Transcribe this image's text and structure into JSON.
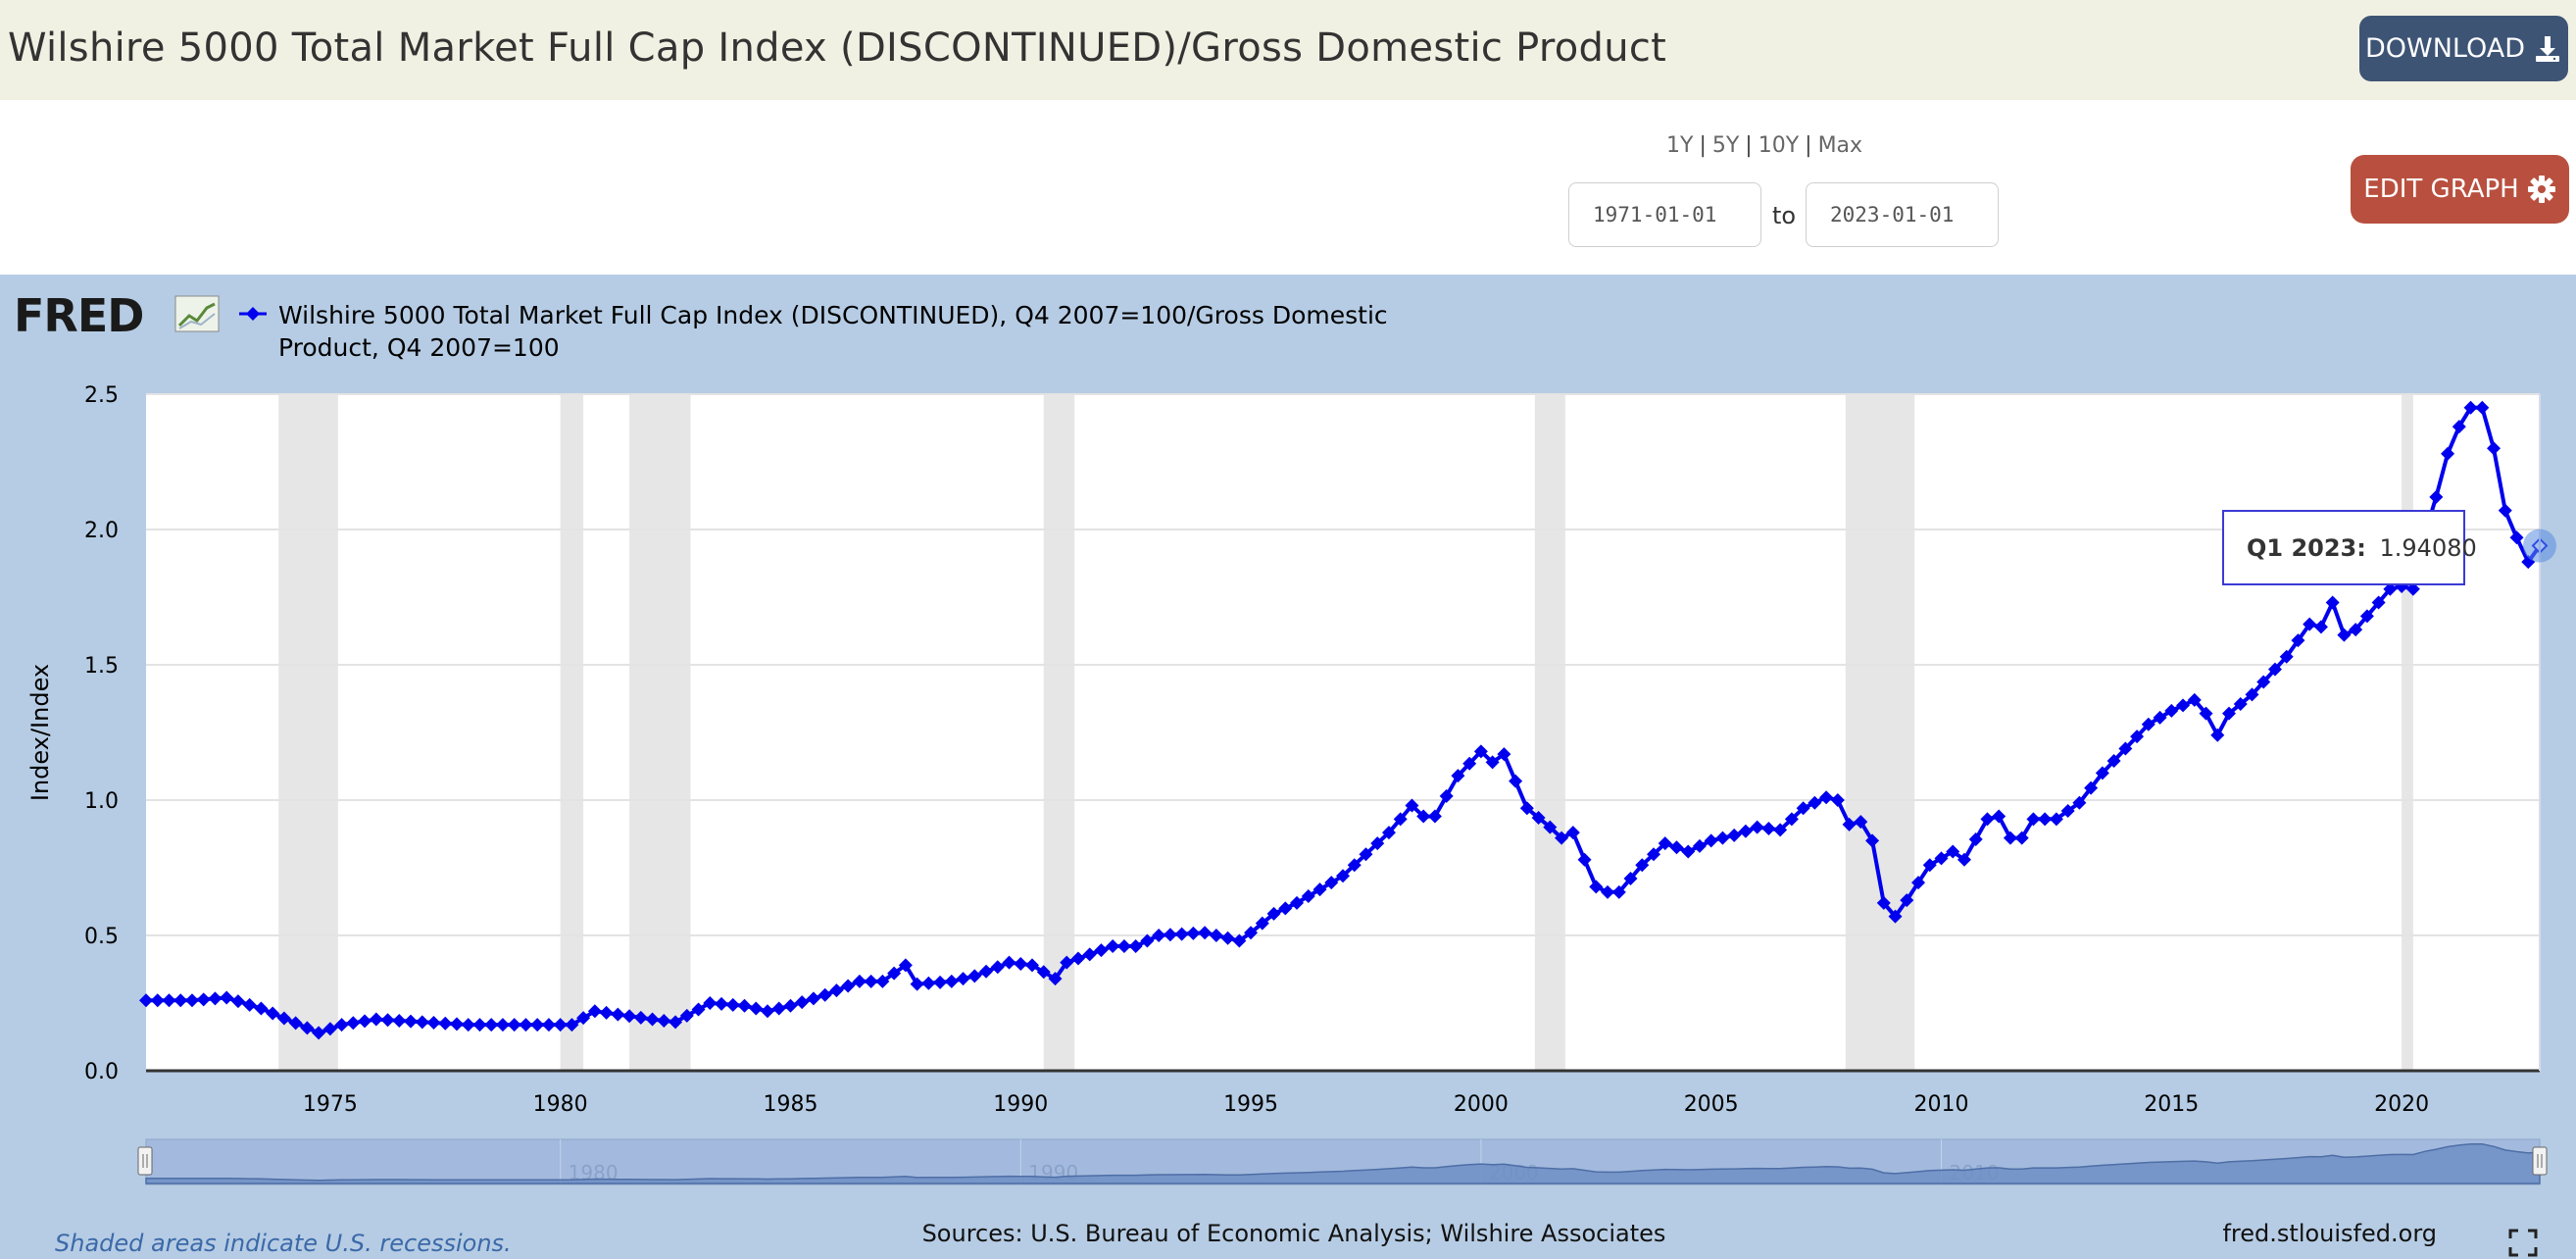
{
  "header": {
    "title": "Wilshire 5000 Total Market Full Cap Index (DISCONTINUED)/Gross Domestic Product",
    "download_label": "DOWNLOAD",
    "edit_graph_label": "EDIT GRAPH"
  },
  "date_range": {
    "links": [
      "1Y",
      "5Y",
      "10Y",
      "Max"
    ],
    "start": "1971-01-01",
    "end": "2023-01-01",
    "to_label": "to"
  },
  "colors": {
    "series": "#0000ee",
    "panel": "#b6cce4",
    "recession": "#e6e6e6",
    "title_bar": "#f1f1e3",
    "download": "#3d5475",
    "edit": "#b9503f"
  },
  "chart_data": {
    "type": "line",
    "brand": "FRED",
    "legend": "Wilshire 5000 Total Market Full Cap Index (DISCONTINUED), Q4 2007=100/Gross Domestic Product, Q4 2007=100",
    "legend_line1": "Wilshire 5000 Total Market Full Cap Index (DISCONTINUED), Q4 2007=100/Gross Domestic",
    "legend_line2": "Product, Q4 2007=100",
    "ylabel": "Index/Index",
    "ylim": [
      0,
      2.5
    ],
    "yticks": [
      "0.0",
      "0.5",
      "1.0",
      "1.5",
      "2.0",
      "2.5"
    ],
    "xlim": [
      1971.0,
      2023.0
    ],
    "xticks": [
      "1975",
      "1980",
      "1985",
      "1990",
      "1995",
      "2000",
      "2005",
      "2010",
      "2015",
      "2020"
    ],
    "navigator_labels": [
      "1980",
      "1990",
      "2000",
      "2010"
    ],
    "recessions": [
      [
        1973.88,
        1975.17
      ],
      [
        1980.0,
        1980.5
      ],
      [
        1981.5,
        1982.83
      ],
      [
        1990.5,
        1991.17
      ],
      [
        2001.17,
        2001.83
      ],
      [
        2007.92,
        2009.42
      ],
      [
        2020.0,
        2020.25
      ]
    ],
    "tooltip": {
      "label": "Q1 2023:",
      "value": "1.94080"
    },
    "sources": "Sources: U.S. Bureau of Economic Analysis; Wilshire Associates",
    "recession_note": "Shaded areas indicate U.S. recessions.",
    "site": "fred.stlouisfed.org",
    "anchors": [
      [
        1971.0,
        0.26
      ],
      [
        1972.0,
        0.26
      ],
      [
        1972.75,
        0.27
      ],
      [
        1973.5,
        0.23
      ],
      [
        1974.75,
        0.14
      ],
      [
        1975.25,
        0.17
      ],
      [
        1976.0,
        0.19
      ],
      [
        1977.0,
        0.18
      ],
      [
        1978.0,
        0.17
      ],
      [
        1979.0,
        0.17
      ],
      [
        1980.25,
        0.17
      ],
      [
        1980.75,
        0.22
      ],
      [
        1982.0,
        0.19
      ],
      [
        1982.5,
        0.18
      ],
      [
        1983.25,
        0.25
      ],
      [
        1984.0,
        0.24
      ],
      [
        1984.5,
        0.22
      ],
      [
        1985.0,
        0.24
      ],
      [
        1985.75,
        0.28
      ],
      [
        1986.5,
        0.33
      ],
      [
        1987.0,
        0.33
      ],
      [
        1987.5,
        0.39
      ],
      [
        1987.75,
        0.32
      ],
      [
        1988.5,
        0.33
      ],
      [
        1989.0,
        0.35
      ],
      [
        1989.75,
        0.4
      ],
      [
        1990.25,
        0.39
      ],
      [
        1990.75,
        0.34
      ],
      [
        1991.0,
        0.4
      ],
      [
        1991.5,
        0.43
      ],
      [
        1992.0,
        0.46
      ],
      [
        1992.5,
        0.46
      ],
      [
        1993.0,
        0.5
      ],
      [
        1994.0,
        0.51
      ],
      [
        1994.75,
        0.48
      ],
      [
        1995.0,
        0.51
      ],
      [
        1995.5,
        0.58
      ],
      [
        1996.0,
        0.62
      ],
      [
        1996.5,
        0.67
      ],
      [
        1997.0,
        0.72
      ],
      [
        1997.5,
        0.8
      ],
      [
        1998.0,
        0.88
      ],
      [
        1998.5,
        0.98
      ],
      [
        1998.75,
        0.94
      ],
      [
        1999.0,
        0.94
      ],
      [
        1999.5,
        1.09
      ],
      [
        2000.0,
        1.18
      ],
      [
        2000.25,
        1.14
      ],
      [
        2000.5,
        1.17
      ],
      [
        2001.0,
        0.97
      ],
      [
        2001.5,
        0.9
      ],
      [
        2001.75,
        0.86
      ],
      [
        2002.0,
        0.88
      ],
      [
        2002.5,
        0.68
      ],
      [
        2002.75,
        0.66
      ],
      [
        2003.0,
        0.66
      ],
      [
        2003.5,
        0.76
      ],
      [
        2004.0,
        0.84
      ],
      [
        2004.5,
        0.81
      ],
      [
        2005.0,
        0.85
      ],
      [
        2005.5,
        0.87
      ],
      [
        2006.0,
        0.9
      ],
      [
        2006.5,
        0.89
      ],
      [
        2007.0,
        0.97
      ],
      [
        2007.5,
        1.01
      ],
      [
        2007.75,
        1.0
      ],
      [
        2008.0,
        0.91
      ],
      [
        2008.25,
        0.92
      ],
      [
        2008.5,
        0.85
      ],
      [
        2008.75,
        0.62
      ],
      [
        2009.0,
        0.57
      ],
      [
        2009.25,
        0.63
      ],
      [
        2009.75,
        0.76
      ],
      [
        2010.25,
        0.81
      ],
      [
        2010.5,
        0.78
      ],
      [
        2011.0,
        0.93
      ],
      [
        2011.25,
        0.94
      ],
      [
        2011.5,
        0.86
      ],
      [
        2011.75,
        0.86
      ],
      [
        2012.0,
        0.93
      ],
      [
        2012.5,
        0.93
      ],
      [
        2013.0,
        0.99
      ],
      [
        2013.5,
        1.1
      ],
      [
        2014.0,
        1.19
      ],
      [
        2014.5,
        1.28
      ],
      [
        2015.0,
        1.33
      ],
      [
        2015.5,
        1.37
      ],
      [
        2015.75,
        1.32
      ],
      [
        2016.0,
        1.24
      ],
      [
        2016.25,
        1.32
      ],
      [
        2016.75,
        1.39
      ],
      [
        2017.5,
        1.53
      ],
      [
        2018.0,
        1.65
      ],
      [
        2018.25,
        1.64
      ],
      [
        2018.5,
        1.73
      ],
      [
        2018.75,
        1.61
      ],
      [
        2019.0,
        1.63
      ],
      [
        2019.5,
        1.73
      ],
      [
        2019.75,
        1.78
      ],
      [
        2020.0,
        1.79
      ],
      [
        2020.25,
        1.78
      ],
      [
        2020.5,
        1.98
      ],
      [
        2020.75,
        2.12
      ],
      [
        2021.0,
        2.28
      ],
      [
        2021.25,
        2.38
      ],
      [
        2021.5,
        2.45
      ],
      [
        2021.75,
        2.45
      ],
      [
        2022.0,
        2.3
      ],
      [
        2022.25,
        2.07
      ],
      [
        2022.5,
        1.97
      ],
      [
        2022.75,
        1.88
      ],
      [
        2023.0,
        1.94
      ]
    ]
  }
}
